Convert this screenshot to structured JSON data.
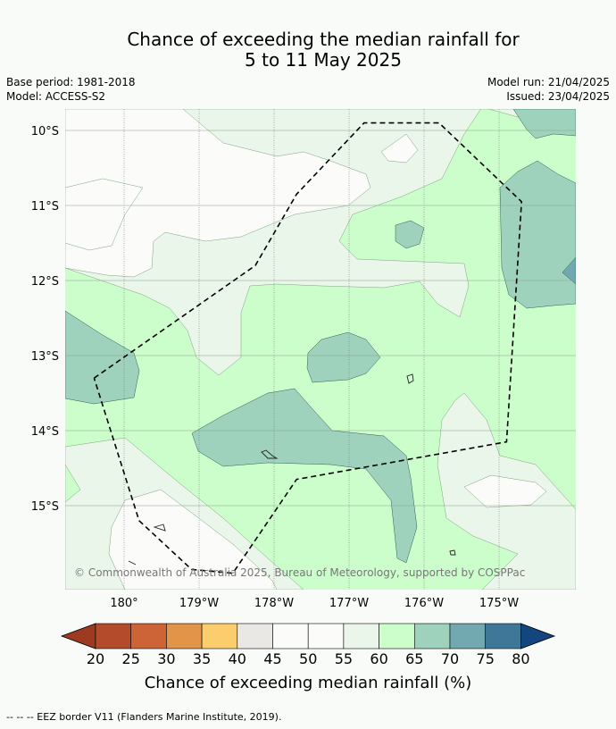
{
  "header": {
    "title_line1": "Chance of exceeding the median rainfall for",
    "title_line2": "5 to 11 May 2025",
    "base_period": "Base period: 1981-2018",
    "model": "Model: ACCESS-S2",
    "model_run": "Model run: 21/04/2025",
    "issued": "Issued: 23/04/2025"
  },
  "copyright": "© Commonwealth of Australia 2025, Bureau of Meteorology, supported by COSPPac",
  "colorbar": {
    "label": "Chance of exceeding median rainfall (%)",
    "ticks": [
      "20",
      "25",
      "30",
      "35",
      "40",
      "45",
      "50",
      "55",
      "60",
      "65",
      "70",
      "75",
      "80"
    ],
    "colors": [
      "#9c3a22",
      "#b44b2a",
      "#cc6437",
      "#e29548",
      "#fbcd6c",
      "#e9e8e4",
      "#fbfcfa",
      "#fbfcfa",
      "#ebf6ea",
      "#ccfecc",
      "#9ed2bd",
      "#72a9b0",
      "#3f7799",
      "#13467d"
    ]
  },
  "footer": "--  --  -- EEZ border V11 (Flanders Marine Institute, 2019).",
  "chart_data": {
    "type": "heatmap",
    "map": "probability of exceeding median rainfall over the Tonga region",
    "x_ticks": [
      "180°",
      "179°W",
      "178°W",
      "177°W",
      "176°W",
      "175°W"
    ],
    "y_ticks": [
      "10°S",
      "11°S",
      "12°S",
      "13°S",
      "14°S",
      "15°S"
    ],
    "lon_range_deg_east": [
      179.2,
      185.8
    ],
    "lat_range_deg": [
      -15.9,
      -9.7
    ],
    "levels_percent": [
      20,
      25,
      30,
      35,
      40,
      45,
      50,
      55,
      60,
      65,
      70,
      75,
      80
    ],
    "eez_border": [
      [
        179.6,
        -13.3
      ],
      [
        181.75,
        -11.8
      ],
      [
        182.3,
        -10.85
      ],
      [
        183.2,
        -9.9
      ],
      [
        184.2,
        -9.9
      ],
      [
        185.3,
        -10.95
      ],
      [
        185.1,
        -14.15
      ],
      [
        182.3,
        -14.65
      ],
      [
        181.45,
        -15.9
      ],
      [
        180.9,
        -15.85
      ],
      [
        180.2,
        -15.2
      ],
      [
        179.6,
        -13.3
      ]
    ],
    "islands": [
      [
        183.8,
        -13.28
      ],
      [
        181.9,
        -14.3
      ],
      [
        184.5,
        -15.6
      ]
    ]
  }
}
